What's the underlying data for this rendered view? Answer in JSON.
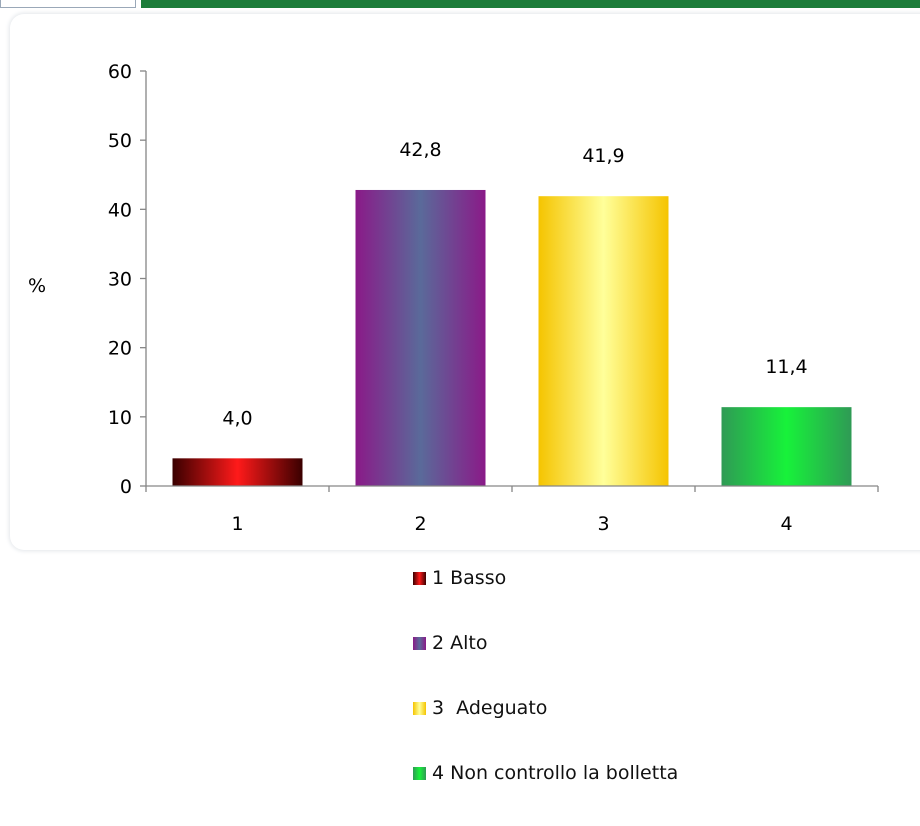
{
  "chart_data": {
    "type": "bar",
    "categories": [
      "1",
      "2",
      "3",
      "4"
    ],
    "values": [
      4.0,
      42.8,
      41.9,
      11.4
    ],
    "value_labels": [
      "4,0",
      "42,8",
      "41,9",
      "11,4"
    ],
    "ylabel": "%",
    "ylim": [
      0,
      60
    ],
    "yticks": [
      0,
      10,
      20,
      30,
      40,
      50,
      60
    ],
    "grid": false,
    "legend_position": "bottom",
    "legend": [
      "1 Basso",
      "2 Alto",
      "3  Adeguato",
      "4 Non controllo la bolletta"
    ],
    "colors": [
      {
        "edge": "#3a0000",
        "mid": "#ff1a1a"
      },
      {
        "edge": "#8a1a88",
        "mid": "#5a6a9a"
      },
      {
        "edge": "#f5c400",
        "mid": "#ffff9a"
      },
      {
        "edge": "#2f9a55",
        "mid": "#17f23a"
      }
    ]
  }
}
